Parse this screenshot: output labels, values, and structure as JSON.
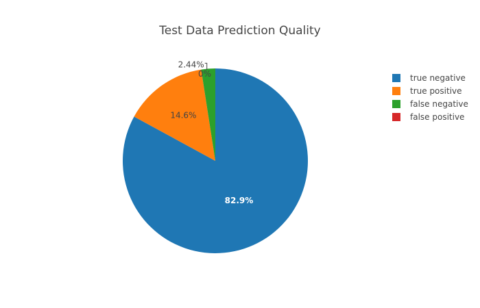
{
  "chart_data": {
    "type": "pie",
    "title": "Test Data Prediction Quality",
    "direction": "clockwise",
    "start_angle": 90,
    "sort": false,
    "slices": [
      {
        "label": "true negative",
        "percent": 82.9,
        "percent_text": "82.9%",
        "color": "#1f77b4",
        "label_color": "#ffffff",
        "label_weight": "bold",
        "label_position": "inside"
      },
      {
        "label": "true positive",
        "percent": 14.6,
        "percent_text": "14.6%",
        "color": "#ff7f0e",
        "label_color": "#444444",
        "label_weight": "normal",
        "label_position": "inside"
      },
      {
        "label": "false negative",
        "percent": 2.44,
        "percent_text": "2.44%",
        "color": "#2ca02c",
        "label_color": "#444444",
        "label_weight": "normal",
        "label_position": "outside"
      },
      {
        "label": "false positive",
        "percent": 0,
        "percent_text": "0%",
        "color": "#d62728",
        "label_color": "#444444",
        "label_weight": "normal",
        "label_position": "outside"
      }
    ],
    "legend_position": "top-right"
  }
}
